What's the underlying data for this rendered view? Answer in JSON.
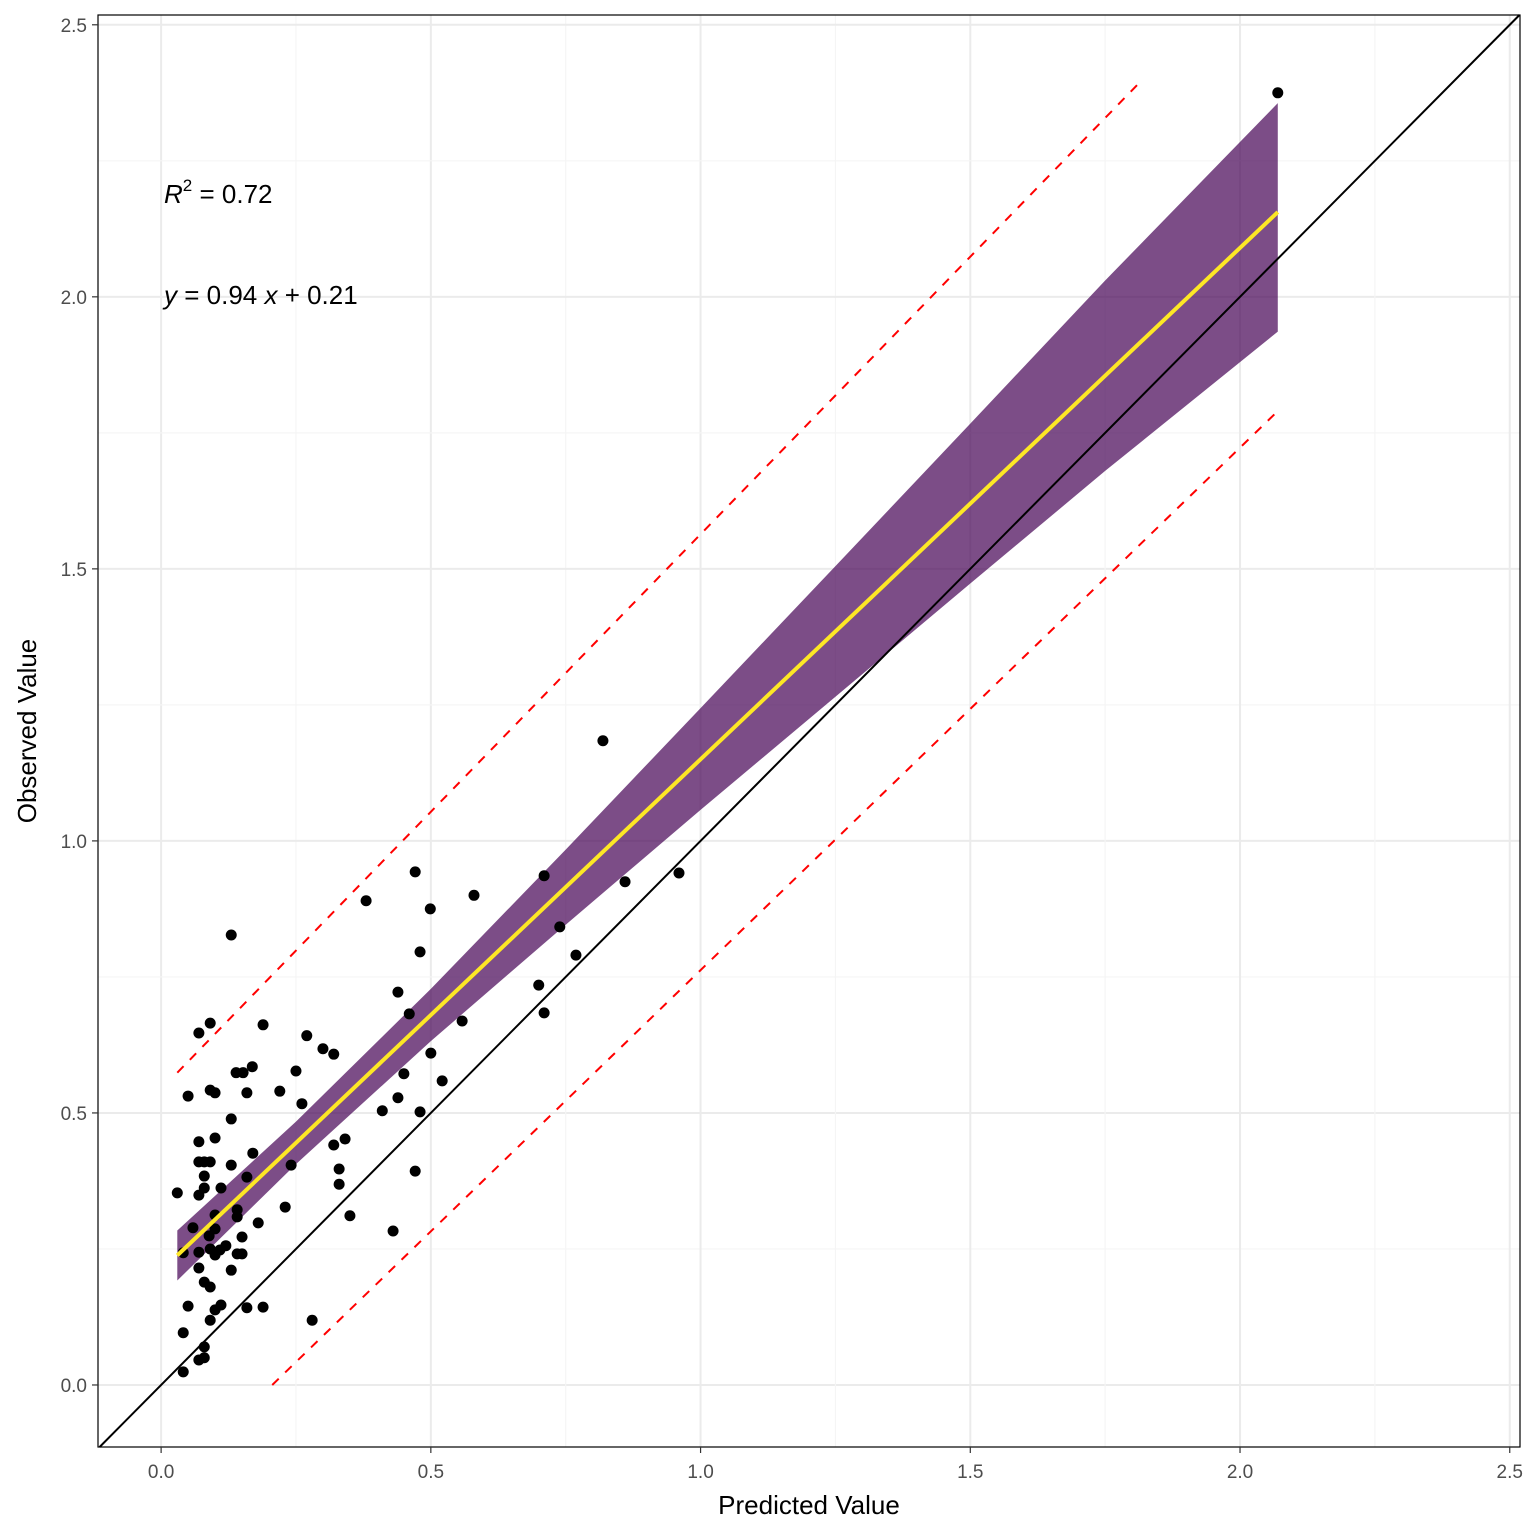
{
  "chart_data": {
    "type": "scatter",
    "xlabel": "Predicted Value",
    "ylabel": "Observed Value",
    "xlim": [
      -0.117,
      2.519
    ],
    "ylim": [
      -0.114,
      2.518
    ],
    "x_ticks": [
      "0.0",
      "0.5",
      "1.0",
      "1.5",
      "2.0",
      "2.5"
    ],
    "y_ticks": [
      "0.0",
      "0.5",
      "1.0",
      "1.5",
      "2.0",
      "2.5"
    ],
    "grid": true,
    "annotations": {
      "r2_label": "R",
      "r2_sup": "2",
      "r2_value": " = 0.72",
      "eq_y": "y",
      "eq_mid": " = 0.94 ",
      "eq_x": "x",
      "eq_end": " + 0.21"
    },
    "colors": {
      "points": "#000000",
      "fit": "#FDE725",
      "band": "#440154",
      "prediction": "#FF0000",
      "identity": "#000000"
    },
    "points": [
      [
        2.07,
        2.375
      ],
      [
        0.819,
        1.184
      ],
      [
        0.71,
        0.936
      ],
      [
        0.86,
        0.925
      ],
      [
        0.96,
        0.941
      ],
      [
        0.471,
        0.943
      ],
      [
        0.58,
        0.9
      ],
      [
        0.38,
        0.89
      ],
      [
        0.499,
        0.875
      ],
      [
        0.13,
        0.827
      ],
      [
        0.739,
        0.842
      ],
      [
        0.48,
        0.796
      ],
      [
        0.769,
        0.79
      ],
      [
        0.7,
        0.735
      ],
      [
        0.439,
        0.722
      ],
      [
        0.71,
        0.684
      ],
      [
        0.46,
        0.682
      ],
      [
        0.558,
        0.669
      ],
      [
        0.091,
        0.665
      ],
      [
        0.07,
        0.647
      ],
      [
        0.189,
        0.662
      ],
      [
        0.27,
        0.642
      ],
      [
        0.3,
        0.618
      ],
      [
        0.32,
        0.608
      ],
      [
        0.5,
        0.61
      ],
      [
        0.169,
        0.585
      ],
      [
        0.25,
        0.577
      ],
      [
        0.139,
        0.574
      ],
      [
        0.152,
        0.574
      ],
      [
        0.45,
        0.572
      ],
      [
        0.521,
        0.559
      ],
      [
        0.091,
        0.542
      ],
      [
        0.1,
        0.537
      ],
      [
        0.05,
        0.531
      ],
      [
        0.159,
        0.537
      ],
      [
        0.22,
        0.54
      ],
      [
        0.439,
        0.528
      ],
      [
        0.261,
        0.517
      ],
      [
        0.41,
        0.504
      ],
      [
        0.48,
        0.502
      ],
      [
        0.13,
        0.489
      ],
      [
        0.1,
        0.454
      ],
      [
        0.07,
        0.447
      ],
      [
        0.341,
        0.452
      ],
      [
        0.32,
        0.441
      ],
      [
        0.17,
        0.426
      ],
      [
        0.08,
        0.41
      ],
      [
        0.091,
        0.41
      ],
      [
        0.07,
        0.41
      ],
      [
        0.13,
        0.404
      ],
      [
        0.241,
        0.404
      ],
      [
        0.33,
        0.397
      ],
      [
        0.471,
        0.393
      ],
      [
        0.159,
        0.382
      ],
      [
        0.08,
        0.384
      ],
      [
        0.111,
        0.362
      ],
      [
        0.08,
        0.362
      ],
      [
        0.07,
        0.349
      ],
      [
        0.03,
        0.353
      ],
      [
        0.33,
        0.369
      ],
      [
        0.141,
        0.322
      ],
      [
        0.141,
        0.309
      ],
      [
        0.35,
        0.311
      ],
      [
        0.23,
        0.327
      ],
      [
        0.1,
        0.3125
      ],
      [
        0.18,
        0.298
      ],
      [
        0.059,
        0.289
      ],
      [
        0.1,
        0.287
      ],
      [
        0.089,
        0.274
      ],
      [
        0.15,
        0.272
      ],
      [
        0.43,
        0.283
      ],
      [
        0.12,
        0.256
      ],
      [
        0.091,
        0.25
      ],
      [
        0.07,
        0.244
      ],
      [
        0.041,
        0.243
      ],
      [
        0.1,
        0.239
      ],
      [
        0.109,
        0.248
      ],
      [
        0.15,
        0.241
      ],
      [
        0.141,
        0.241
      ],
      [
        0.07,
        0.215
      ],
      [
        0.13,
        0.211
      ],
      [
        0.08,
        0.189
      ],
      [
        0.091,
        0.18
      ],
      [
        0.05,
        0.145
      ],
      [
        0.111,
        0.147
      ],
      [
        0.1,
        0.138
      ],
      [
        0.159,
        0.142
      ],
      [
        0.189,
        0.143
      ],
      [
        0.28,
        0.119
      ],
      [
        0.091,
        0.119
      ],
      [
        0.041,
        0.096
      ],
      [
        0.08,
        0.07
      ],
      [
        0.07,
        0.046
      ],
      [
        0.08,
        0.05
      ],
      [
        0.041,
        0.024
      ]
    ],
    "fit": {
      "slope": 0.94,
      "intercept": 0.21,
      "x_range": [
        0.03,
        2.07
      ]
    },
    "confidence_band": {
      "x": [
        0.03,
        0.25,
        0.5,
        0.75,
        1.0,
        1.25,
        1.5,
        1.75,
        2.07
      ],
      "lower": [
        0.192,
        0.406,
        0.632,
        0.846,
        1.057,
        1.265,
        1.473,
        1.68,
        1.936
      ],
      "upper": [
        0.284,
        0.484,
        0.728,
        0.984,
        1.244,
        1.505,
        1.767,
        2.03,
        2.356
      ]
    },
    "prediction_interval": {
      "upper": [
        [
          0.03,
          0.574
        ],
        [
          1.81,
          2.39
        ]
      ],
      "lower": [
        [
          0.206,
          0.0
        ],
        [
          2.07,
          1.79
        ]
      ]
    },
    "identity_line": true
  }
}
